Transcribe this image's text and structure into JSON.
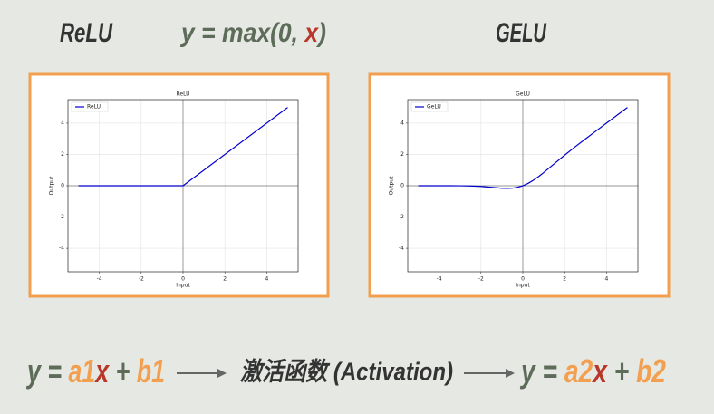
{
  "header": {
    "left_title": "ReLU",
    "formula": [
      "y",
      " = max(0, ",
      "x",
      ")"
    ],
    "right_title": "GELU"
  },
  "chart_data": [
    {
      "type": "line",
      "title": "ReLU",
      "x_label": "Input",
      "y_label": "Output",
      "x": [
        -5,
        0,
        5
      ],
      "series": [
        {
          "name": "ReLU",
          "color": "#0000cc",
          "values": [
            0,
            0,
            5
          ]
        }
      ],
      "xlim": [
        -5.5,
        5.5
      ],
      "ylim": [
        -5.5,
        5.5
      ],
      "xticks": [
        -4,
        -2,
        0,
        2,
        4
      ],
      "yticks": [
        -4,
        -2,
        0,
        2,
        4
      ],
      "grid": true,
      "zero_lines": true,
      "legend": "upper-left"
    },
    {
      "type": "line",
      "title": "GeLU",
      "x_label": "Input",
      "y_label": "Output",
      "x": [
        -5,
        -4.5,
        -4,
        -3.5,
        -3,
        -2.5,
        -2,
        -1.5,
        -1,
        -0.75,
        -0.5,
        -0.25,
        0,
        0.25,
        0.5,
        0.75,
        1,
        1.5,
        2,
        2.5,
        3,
        3.5,
        4,
        4.5,
        5
      ],
      "series": [
        {
          "name": "GeLU",
          "color": "#0000cc",
          "values": [
            0,
            0,
            -0.0001,
            -0.0008,
            -0.004,
            -0.0155,
            -0.0455,
            -0.1002,
            -0.1587,
            -0.17,
            -0.1543,
            -0.0999,
            0,
            0.1501,
            0.3457,
            0.58,
            0.8413,
            1.3998,
            1.9545,
            2.4845,
            2.996,
            3.4992,
            3.9999,
            4.5,
            5
          ]
        }
      ],
      "xlim": [
        -5.5,
        5.5
      ],
      "ylim": [
        -5.5,
        5.5
      ],
      "xticks": [
        -4,
        -2,
        0,
        2,
        4
      ],
      "yticks": [
        -4,
        -2,
        0,
        2,
        4
      ],
      "grid": true,
      "zero_lines": true,
      "legend": "upper-left"
    }
  ],
  "footer": {
    "before": [
      "y",
      " = ",
      "a1",
      "x",
      " + ",
      "b1"
    ],
    "middle": "激活函数 (Activation)",
    "after": [
      "y",
      " = ",
      "a2",
      "x",
      " + ",
      "b2"
    ]
  }
}
